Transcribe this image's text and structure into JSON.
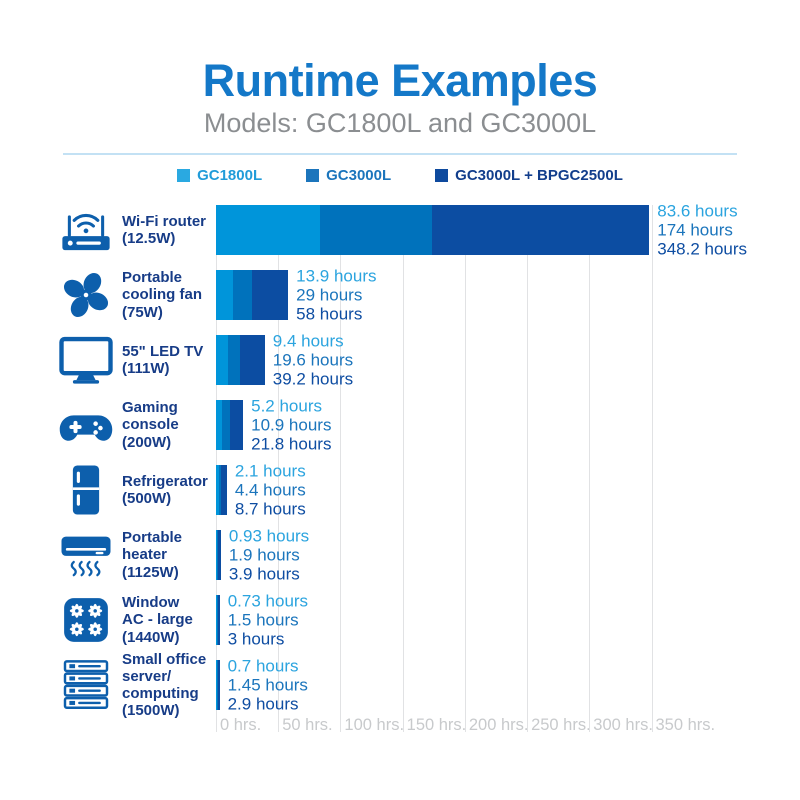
{
  "header": {
    "title": "Runtime Examples",
    "subtitle": "Models: GC1800L and GC3000L"
  },
  "colors": {
    "title_blue": "#1478C8",
    "subtitle_gray": "#8B8E91",
    "divider_light_blue": "#C3E1F4",
    "device_label_navy": "#173C87",
    "icon_blue": "#0D5FAC",
    "gridline_gray": "#E1E2E4",
    "tick_gray": "#C8CACC"
  },
  "legend": [
    {
      "label": "GC1800L",
      "color": "#2AA9E1",
      "text_color": "#219CD9"
    },
    {
      "label": "GC3000L",
      "color": "#1C75BC",
      "text_color": "#1B75BC"
    },
    {
      "label": "GC3000L + BPGC2500L",
      "color": "#0E4A9E",
      "text_color": "#123E8C"
    }
  ],
  "chart_data": {
    "type": "bar",
    "orientation": "horizontal",
    "unit": "hours",
    "title": "Runtime Examples",
    "subtitle": "Models: GC1800L and GC3000L",
    "series": [
      "GC1800L",
      "GC3000L",
      "GC3000L + BPGC2500L"
    ],
    "bar_colors": [
      "#0095DA",
      "#0072BC",
      "#0C4DA2"
    ],
    "label_colors": [
      "#2BA4DF",
      "#1B75BC",
      "#0E4DA2"
    ],
    "x_ticks": [
      "0 hrs.",
      "50 hrs.",
      "100 hrs.",
      "150 hrs.",
      "200 hrs.",
      "250 hrs.",
      "300 hrs.",
      "350 hrs."
    ],
    "x_range_hours": [
      0,
      350
    ],
    "rows": [
      {
        "device": "Wi-Fi router (12.5W)",
        "label_lines": [
          "Wi-Fi router",
          "(12.5W)"
        ],
        "icon": "wifi-router-icon",
        "values": [
          83.6,
          174,
          348.2
        ]
      },
      {
        "device": "Portable cooling fan (75W)",
        "label_lines": [
          "Portable",
          "cooling fan",
          "(75W)"
        ],
        "icon": "cooling-fan-icon",
        "values": [
          13.9,
          29,
          58
        ]
      },
      {
        "device": "55\" LED TV (111W)",
        "label_lines": [
          "55\" LED TV",
          "(111W)"
        ],
        "icon": "tv-icon",
        "values": [
          9.4,
          19.6,
          39.2
        ]
      },
      {
        "device": "Gaming console (200W)",
        "label_lines": [
          "Gaming",
          "console",
          "(200W)"
        ],
        "icon": "gamepad-icon",
        "values": [
          5.2,
          10.9,
          21.8
        ]
      },
      {
        "device": "Refrigerator (500W)",
        "label_lines": [
          "Refrigerator",
          "(500W)"
        ],
        "icon": "refrigerator-icon",
        "values": [
          2.1,
          4.4,
          8.7
        ]
      },
      {
        "device": "Portable heater (1125W)",
        "label_lines": [
          "Portable",
          "heater",
          "(1125W)"
        ],
        "icon": "heater-icon",
        "values": [
          0.93,
          1.9,
          3.9
        ]
      },
      {
        "device": "Window AC - large (1440W)",
        "label_lines": [
          "Window",
          "AC - large",
          "(1440W)"
        ],
        "icon": "window-ac-icon",
        "values": [
          0.73,
          1.5,
          3
        ]
      },
      {
        "device": "Small office server/computing (1500W)",
        "label_lines": [
          "Small office",
          "server/",
          "computing",
          "(1500W)"
        ],
        "icon": "server-icon",
        "values": [
          0.7,
          1.45,
          2.9
        ]
      }
    ]
  }
}
